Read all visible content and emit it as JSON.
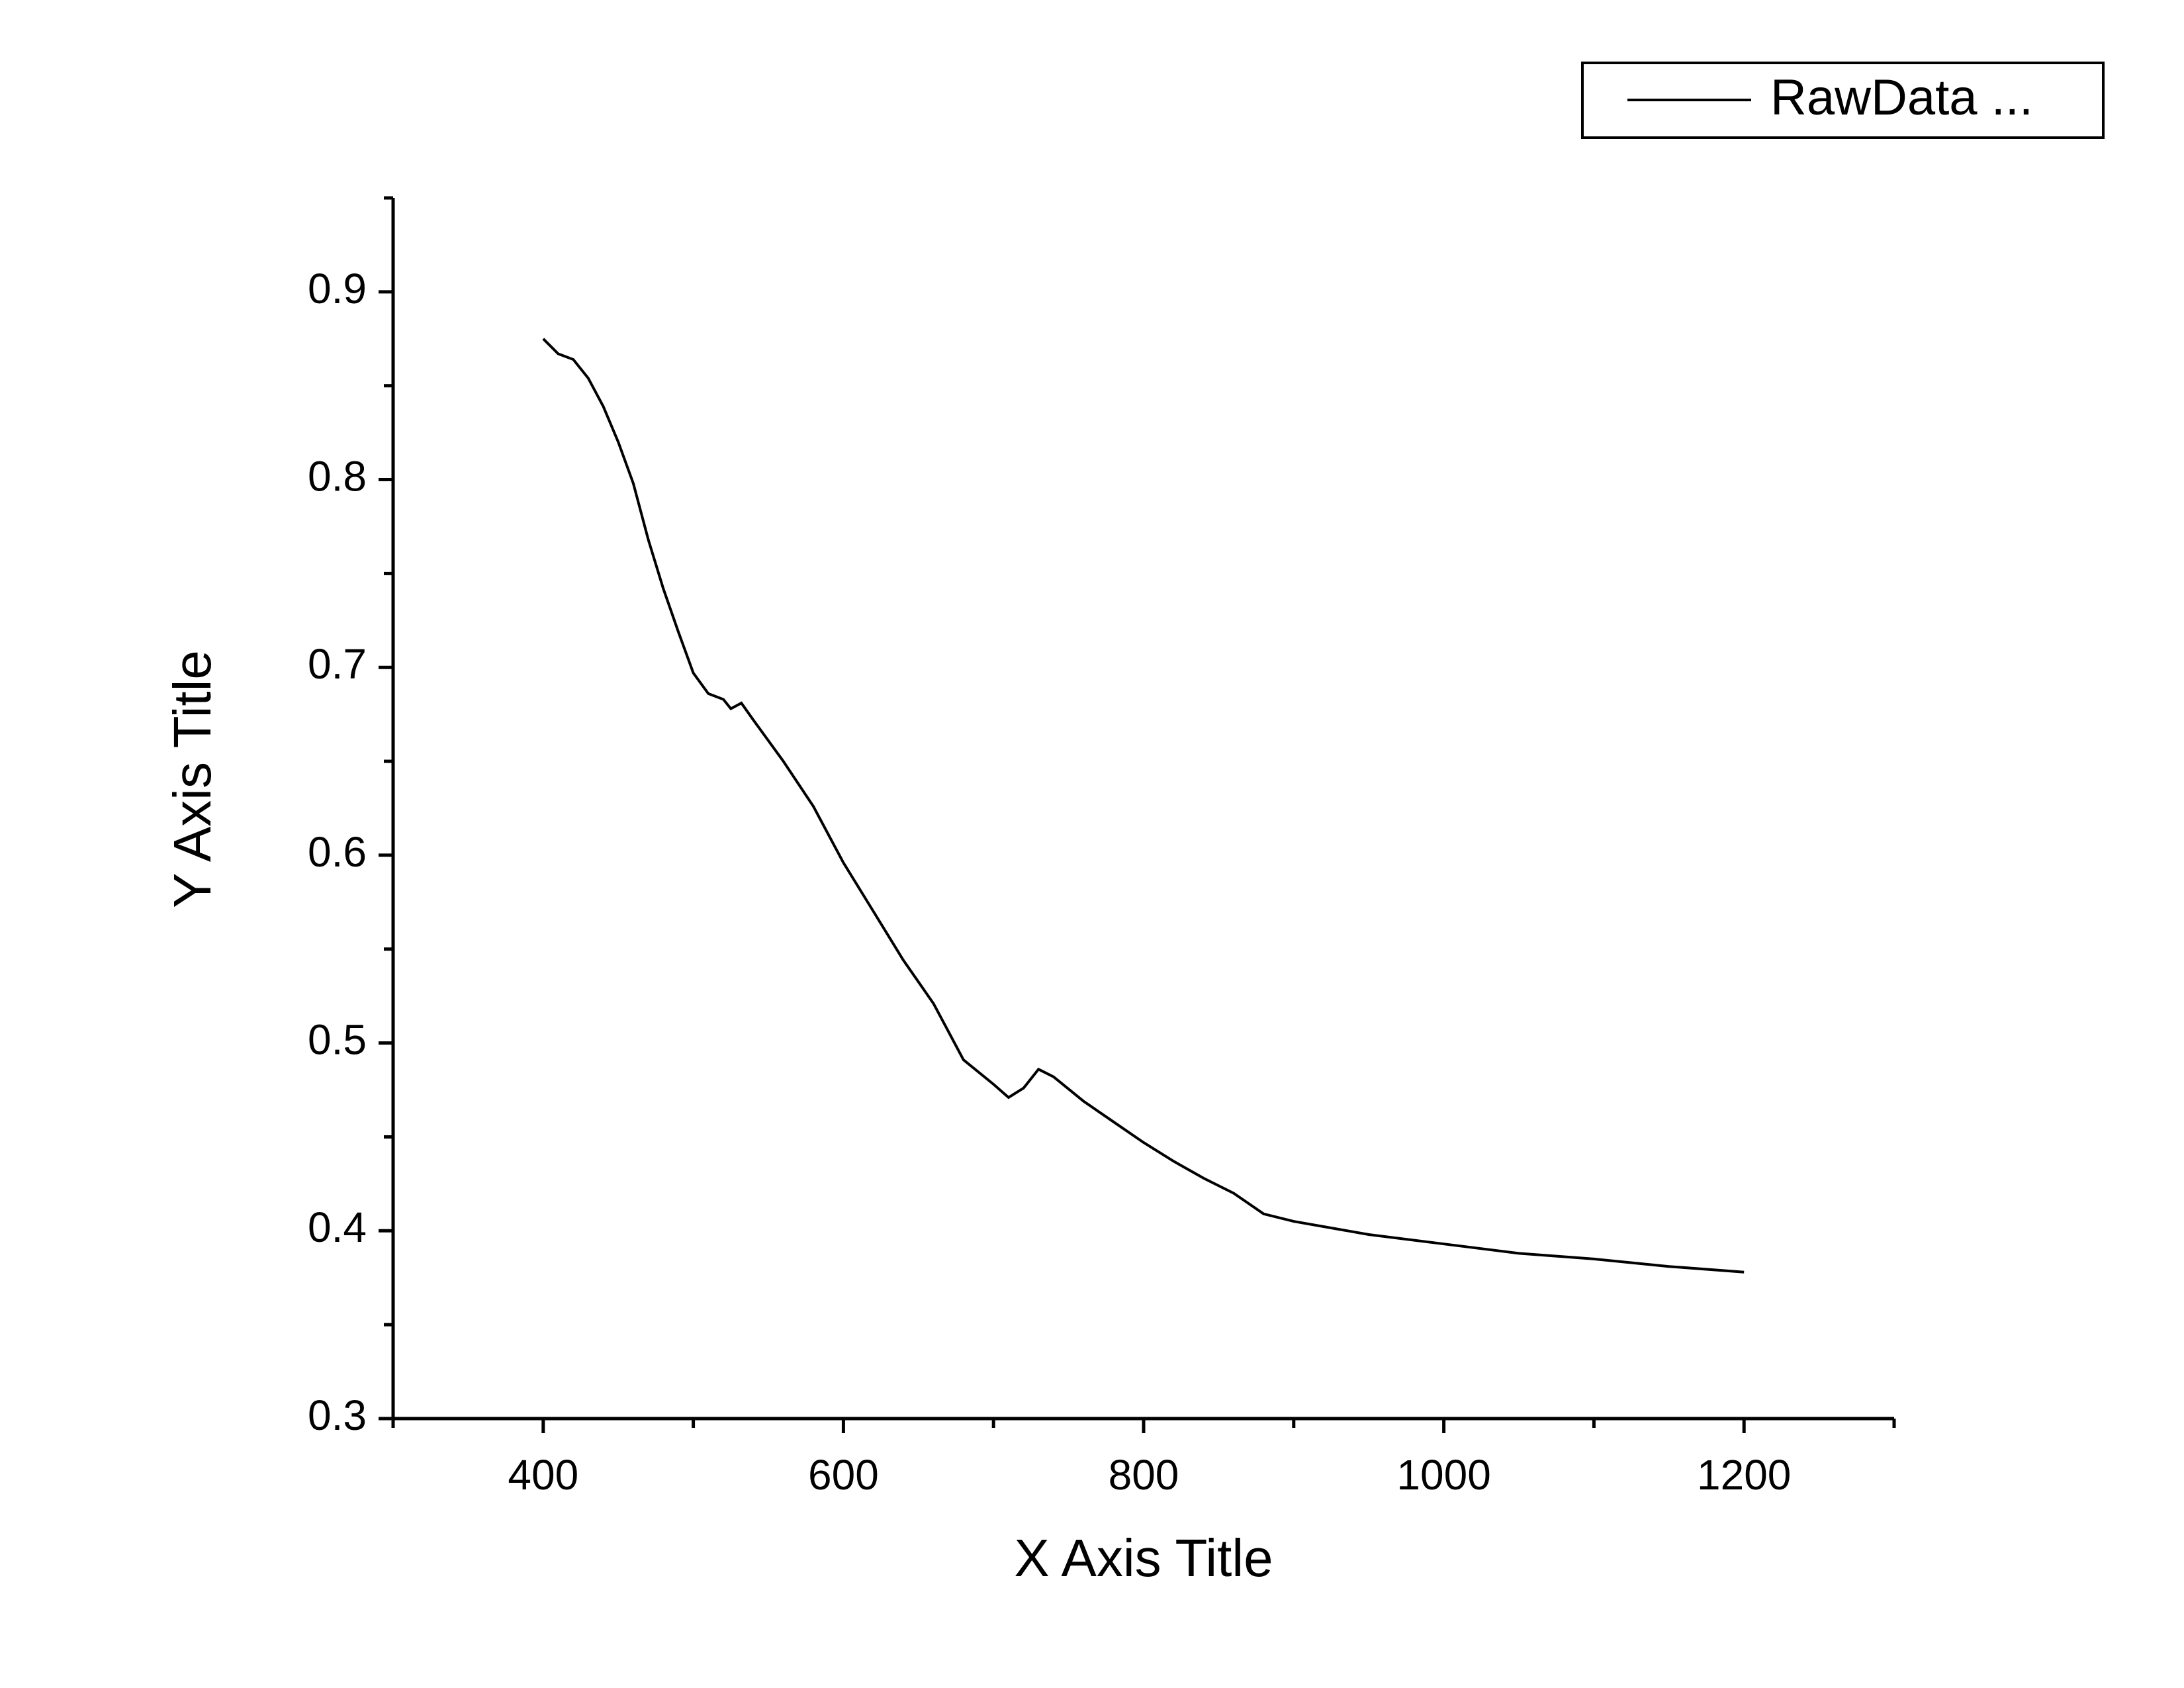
{
  "chart_data": {
    "type": "line",
    "x_label": "X Axis Title",
    "y_label": "Y Axis Title",
    "series": [
      {
        "name": "RawData ...",
        "color": "#000000",
        "x": [
          400,
          410,
          420,
          430,
          440,
          450,
          460,
          470,
          480,
          490,
          500,
          510,
          520,
          525,
          532,
          540,
          560,
          580,
          600,
          620,
          640,
          660,
          670,
          680,
          700,
          710,
          720,
          730,
          740,
          760,
          780,
          800,
          820,
          840,
          860,
          880,
          900,
          950,
          1000,
          1050,
          1100,
          1150,
          1200
        ],
        "values": [
          0.875,
          0.867,
          0.864,
          0.854,
          0.839,
          0.82,
          0.798,
          0.768,
          0.742,
          0.719,
          0.697,
          0.686,
          0.683,
          0.678,
          0.681,
          0.672,
          0.65,
          0.626,
          0.596,
          0.57,
          0.544,
          0.521,
          0.506,
          0.491,
          0.478,
          0.471,
          0.476,
          0.486,
          0.482,
          0.469,
          0.458,
          0.447,
          0.437,
          0.428,
          0.42,
          0.409,
          0.405,
          0.398,
          0.393,
          0.388,
          0.385,
          0.381,
          0.378
        ]
      }
    ],
    "xlim": [
      300,
      1300
    ],
    "xticks": [
      400,
      600,
      800,
      1000,
      1200
    ],
    "ylim": [
      0.3,
      0.95
    ],
    "yticks": [
      0.3,
      0.4,
      0.5,
      0.6,
      0.7,
      0.8,
      0.9
    ],
    "grid": false,
    "legend": "top-right"
  }
}
